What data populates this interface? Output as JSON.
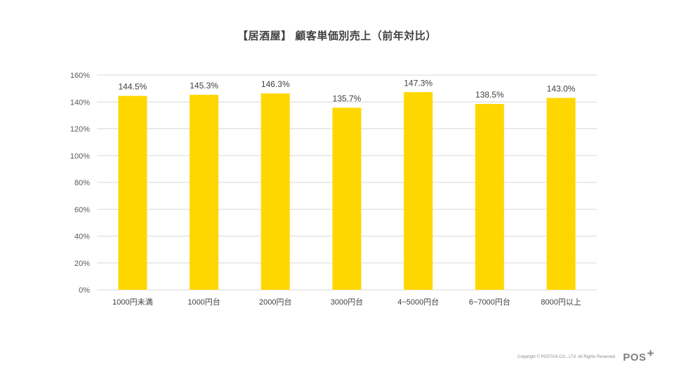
{
  "title": "【居酒屋】 顧客単価別売上（前年対比）",
  "chart_data": {
    "type": "bar",
    "title": "【居酒屋】 顧客単価別売上（前年対比）",
    "categories": [
      "1000円未満",
      "1000円台",
      "2000円台",
      "3000円台",
      "4~5000円台",
      "6~7000円台",
      "8000円以上"
    ],
    "series": [
      {
        "values": [
          144.5,
          145.3,
          146.3,
          135.7,
          147.3,
          138.5,
          143.0
        ],
        "data_labels": [
          "144.5%",
          "145.3%",
          "146.3%",
          "135.7%",
          "147.3%",
          "138.5%",
          "143.0%"
        ]
      }
    ],
    "ylim": [
      0,
      160
    ],
    "y_ticks": [
      0,
      20,
      40,
      60,
      80,
      100,
      120,
      140,
      160
    ],
    "y_tick_labels": [
      "0%",
      "20%",
      "40%",
      "60%",
      "80%",
      "100%",
      "120%",
      "140%",
      "160%"
    ],
    "grid": true,
    "legend": "none",
    "bar_color": "#FFD700",
    "grid_color": "#D9D9D9"
  },
  "footer": {
    "copyright": "Copyright © POSTAS CO., LTd. All Rights Reserved.",
    "logo_text": "POS",
    "logo_plus": "+"
  }
}
